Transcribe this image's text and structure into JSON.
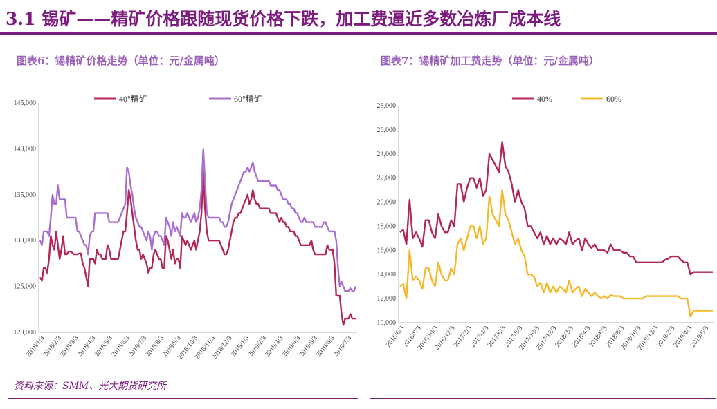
{
  "header": {
    "title": "3.1 锡矿——精矿价格跟随现货价格下跌，加工费逼近多数冶炼厂成本线"
  },
  "figures": [
    {
      "title": "图表6：锡精矿价格走势（单位：元/金属吨）"
    },
    {
      "title": "图表7：锡精矿加工费走势（单位：元/金属吨）"
    }
  ],
  "footer": {
    "source": "资料来源：SMM、光大期货研究所"
  },
  "colors": {
    "accent": "#7b1c7e",
    "rule": "#9a5fb8",
    "s40": "#b2265a",
    "s60": "#a86fd0",
    "s60b": "#f5b82a"
  },
  "chart_data": [
    {
      "type": "line",
      "title": "图表6：锡精矿价格走势（单位：元/金属吨）",
      "ylim": [
        120000,
        145000
      ],
      "yticks": [
        "120,000",
        "125,000",
        "130,000",
        "135,000",
        "140,000",
        "145,000"
      ],
      "xlabels": [
        "2018/1/3",
        "2018/2/3",
        "2018/3/3",
        "2018/4/3",
        "2018/5/3",
        "2018/6/3",
        "2018/7/3",
        "2018/8/3",
        "2018/9/3",
        "2018/10/3",
        "2018/11/3",
        "2018/12/3",
        "2019/1/3",
        "2019/2/3",
        "2019/3/3",
        "2019/4/3",
        "2019/5/3",
        "2019/6/3",
        "2019/7/3"
      ],
      "series": [
        {
          "name": "40°精矿",
          "color": "#b2265a",
          "values": [
            126000,
            125600,
            127000,
            127000,
            126500,
            128000,
            130500,
            129500,
            129000,
            131000,
            129500,
            128000,
            129000,
            130500,
            128500,
            128500,
            128800,
            128800,
            128700,
            128500,
            128500,
            128500,
            128600,
            128600,
            127500,
            127000,
            126000,
            125000,
            128000,
            128000,
            128000,
            127500,
            129000,
            128500,
            128500,
            128000,
            128000,
            128000,
            129500,
            129000,
            128000,
            128000,
            128000,
            128000,
            128000,
            129000,
            130000,
            131000,
            131000,
            133000,
            135500,
            134500,
            133000,
            131500,
            130000,
            129000,
            129000,
            128000,
            128500,
            128000,
            127500,
            126500,
            127000,
            127000,
            128500,
            129000,
            128500,
            128000,
            128000,
            127000,
            127000,
            130500,
            130000,
            129000,
            128000,
            129000,
            127500,
            128000,
            128000,
            127000,
            130500,
            130000,
            129500,
            130000,
            129500,
            129000,
            129500,
            130000,
            129000,
            130000,
            131000,
            133000,
            137500,
            133500,
            131000,
            130000,
            130000,
            130000,
            130000,
            130000,
            130000,
            130000,
            129500,
            129000,
            128500,
            128500,
            129000,
            130000,
            131000,
            132000,
            132500,
            132500,
            133000,
            133000,
            133500,
            134000,
            134500,
            135000,
            134000,
            134500,
            135500,
            134500,
            134000,
            134000,
            133500,
            133500,
            133500,
            133500,
            133500,
            133500,
            133000,
            133000,
            133000,
            133000,
            132500,
            132000,
            132500,
            132000,
            132000,
            131500,
            131500,
            131000,
            131000,
            131000,
            130500,
            130500,
            130000,
            129500,
            129500,
            129500,
            129500,
            129500,
            129500,
            130000,
            129000,
            128500,
            128500,
            128500,
            128500,
            128500,
            128500,
            128500,
            129500,
            129000,
            129000,
            129000,
            127500,
            124000,
            124000,
            124000,
            122000,
            120800,
            121500,
            121500,
            121500,
            122000,
            121500,
            121500,
            121500
          ]
        },
        {
          "name": "60°精矿",
          "color": "#a86fd0",
          "values": [
            130000,
            129500,
            131000,
            131000,
            131000,
            130500,
            132500,
            135000,
            134000,
            134000,
            136000,
            134500,
            134500,
            134500,
            134500,
            132500,
            132500,
            132500,
            132500,
            132500,
            132500,
            131000,
            131000,
            130500,
            130000,
            129500,
            129500,
            128500,
            130500,
            131000,
            131000,
            133000,
            133000,
            133000,
            133000,
            133000,
            133000,
            133000,
            133000,
            132000,
            132000,
            132000,
            132000,
            132000,
            132000,
            132500,
            133000,
            133500,
            134000,
            138000,
            137500,
            136000,
            135000,
            133500,
            132500,
            132000,
            131500,
            131500,
            131000,
            130500,
            130000,
            131000,
            130500,
            129000,
            130500,
            131000,
            131000,
            130500,
            130500,
            130000,
            129500,
            132500,
            132000,
            131500,
            130500,
            132000,
            131000,
            131500,
            131000,
            130500,
            133000,
            132500,
            132500,
            133000,
            132500,
            132000,
            132500,
            133000,
            132000,
            132500,
            133500,
            135500,
            140000,
            136500,
            133000,
            132500,
            132500,
            132500,
            132500,
            132500,
            132500,
            132500,
            132000,
            132000,
            131500,
            131500,
            132000,
            133000,
            134000,
            134500,
            135000,
            135500,
            136000,
            136500,
            137000,
            137500,
            137500,
            138000,
            137500,
            138000,
            138500,
            137500,
            137000,
            136500,
            136500,
            136500,
            136500,
            136500,
            136500,
            136500,
            136000,
            136000,
            136000,
            136000,
            135500,
            135500,
            135000,
            134500,
            134500,
            134500,
            134000,
            134000,
            133500,
            133500,
            133000,
            133000,
            132500,
            132000,
            132000,
            132500,
            132000,
            132000,
            132000,
            132000,
            132000,
            131500,
            131500,
            131500,
            131500,
            131500,
            132000,
            132000,
            131500,
            131000,
            131000,
            131000,
            131000,
            130000,
            127000,
            125000,
            125500,
            125000,
            124500,
            124500,
            124500,
            124800,
            124500,
            124500,
            125000
          ]
        }
      ]
    },
    {
      "type": "line",
      "title": "图表7：锡精矿加工费走势（单位：元/金属吨）",
      "ylim": [
        10000,
        28000
      ],
      "yticks": [
        "10,000",
        "12,000",
        "14,000",
        "16,000",
        "18,000",
        "20,000",
        "22,000",
        "24,000",
        "26,000",
        "28,000"
      ],
      "xlabels": [
        "2016/6/3",
        "2016/8/3",
        "2016/10/3",
        "2016/12/3",
        "2017/2/3",
        "2017/4/3",
        "2017/6/3",
        "2017/8/3",
        "2017/10/3",
        "2017/12/3",
        "2018/2/3",
        "2018/4/3",
        "2018/6/3",
        "2018/8/3",
        "2018/10/3",
        "2018/12/3",
        "2019/2/3",
        "2019/4/3",
        "2019/6/3"
      ],
      "series": [
        {
          "name": "40%",
          "color": "#b2265a",
          "values": [
            17500,
            17700,
            16500,
            20200,
            17000,
            17500,
            17000,
            16300,
            18500,
            18500,
            17500,
            17000,
            19000,
            18000,
            17500,
            17500,
            18500,
            18000,
            21500,
            21500,
            20000,
            21200,
            22000,
            22000,
            21200,
            22000,
            20500,
            21000,
            24000,
            23500,
            23000,
            22500,
            25000,
            23000,
            22500,
            21500,
            20000,
            21000,
            20000,
            19500,
            18000,
            18000,
            17500,
            17000,
            17500,
            16500,
            17200,
            16500,
            17000,
            16500,
            17000,
            16800,
            16500,
            17500,
            16500,
            16800,
            17000,
            16000,
            17000,
            16500,
            16200,
            16500,
            16000,
            16000,
            16000,
            15800,
            16500,
            16000,
            16000,
            16000,
            15800,
            15800,
            15500,
            15500,
            15000,
            15000,
            15000,
            15000,
            15000,
            15000,
            15000,
            15000,
            15000,
            15200,
            15300,
            15500,
            15500,
            15500,
            15200,
            15000,
            15000,
            14000,
            14200,
            14200,
            14200,
            14200,
            14200,
            14200,
            14200
          ]
        },
        {
          "name": "60%",
          "color": "#f5b82a",
          "values": [
            13000,
            13200,
            12000,
            16000,
            13500,
            13800,
            13500,
            12800,
            14500,
            14500,
            13500,
            13000,
            15000,
            14000,
            13500,
            13500,
            14500,
            14000,
            16500,
            17000,
            16000,
            17000,
            18000,
            18000,
            17000,
            18000,
            16500,
            17000,
            20500,
            19000,
            18500,
            18000,
            21000,
            19000,
            18500,
            17500,
            16500,
            17000,
            16000,
            15500,
            14000,
            14000,
            13800,
            13000,
            13300,
            12500,
            13300,
            12500,
            13000,
            12500,
            13000,
            12800,
            12500,
            13500,
            12500,
            12800,
            13000,
            12200,
            12800,
            12500,
            12200,
            12500,
            12200,
            12000,
            12200,
            12000,
            12300,
            12200,
            12200,
            12200,
            12000,
            12000,
            12000,
            12000,
            12000,
            12000,
            12000,
            12200,
            12200,
            12200,
            12200,
            12200,
            12200,
            12200,
            12200,
            12200,
            12200,
            12200,
            12000,
            12000,
            12000,
            10500,
            11000,
            11000,
            11000,
            11000,
            11000,
            11000,
            11000
          ]
        }
      ]
    }
  ]
}
